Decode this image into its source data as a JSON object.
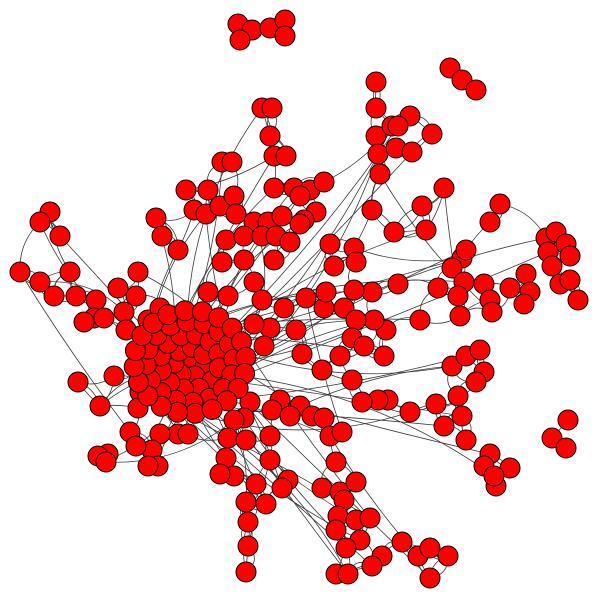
{
  "graph": {
    "node_fill": "#ff0000",
    "node_stroke": "#000000",
    "edge_stroke": "#3a3a3a"
  }
}
